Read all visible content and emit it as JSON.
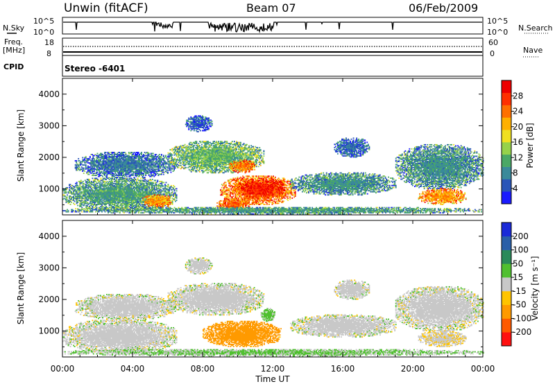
{
  "header": {
    "station": "Unwin (fitACF)",
    "beam": "Beam 07",
    "date": "06/Feb/2009"
  },
  "top_panels": {
    "nsky_label": "N.Sky",
    "nsky_ticks": [
      "10^5",
      "10^0"
    ],
    "nsearch_label": "N.Search",
    "nsearch_ticks": [
      "10^5",
      "10^0"
    ],
    "freq_label_1": "Freq.",
    "freq_label_2": "[MHz]",
    "freq_ticks": [
      "18",
      "8"
    ],
    "nave_label": "Nave",
    "nave_ticks": [
      "60",
      "0"
    ],
    "cpid_label": "CPID",
    "cpid_text": "Stereo -6401"
  },
  "colors": {
    "power": [
      "#1a1aff",
      "#2a55b8",
      "#3a8a9a",
      "#4aa866",
      "#96d24a",
      "#f0e020",
      "#ffb000",
      "#ff7000",
      "#ff3000",
      "#ee0000"
    ],
    "velocity": [
      "#ff1010",
      "#ff5a00",
      "#ff9a00",
      "#ffc400",
      "#c8c8c8",
      "#50c030",
      "#2a8a5a",
      "#2a5fa8",
      "#1a2ad8"
    ]
  },
  "chart_data": [
    {
      "type": "heatmap",
      "title": "",
      "xlabel": "Time UT",
      "ylabel": "Slant Range [km]",
      "xlim": [
        0,
        24
      ],
      "ylim": [
        180,
        4500
      ],
      "x_ticks": [
        "00:00",
        "04:00",
        "08:00",
        "12:00",
        "16:00",
        "20:00",
        "00:00"
      ],
      "y_ticks": [
        "1000",
        "2000",
        "3000",
        "4000"
      ],
      "colorbar_label": "Power [dB]",
      "colorbar_ticks": [
        "28",
        "24",
        "20",
        "16",
        "12",
        "8",
        "4"
      ],
      "colorbar_range": [
        0,
        32
      ],
      "grid": false,
      "regions": [
        {
          "t0": 0,
          "t1": 6.5,
          "r0": 300,
          "r1": 1350,
          "v": 10
        },
        {
          "t0": 4.5,
          "t1": 6.3,
          "r0": 400,
          "r1": 800,
          "v": 22
        },
        {
          "t0": 0.7,
          "t1": 6.5,
          "r0": 1350,
          "r1": 2150,
          "v": 7
        },
        {
          "t0": 6,
          "t1": 11.5,
          "r0": 1500,
          "r1": 2500,
          "v": 12
        },
        {
          "t0": 9.5,
          "t1": 11,
          "r0": 1500,
          "r1": 1900,
          "v": 24
        },
        {
          "t0": 9,
          "t1": 13.3,
          "r0": 500,
          "r1": 1400,
          "v": 24
        },
        {
          "t0": 10,
          "t1": 12.7,
          "r0": 700,
          "r1": 1300,
          "v": 29
        },
        {
          "t0": 8.8,
          "t1": 10.7,
          "r0": 280,
          "r1": 700,
          "v": 25
        },
        {
          "t0": 7,
          "t1": 8.5,
          "r0": 2800,
          "r1": 3300,
          "v": 5
        },
        {
          "t0": 13,
          "t1": 19,
          "r0": 800,
          "r1": 1500,
          "v": 9
        },
        {
          "t0": 15.5,
          "t1": 17.5,
          "r0": 2000,
          "r1": 2600,
          "v": 6
        },
        {
          "t0": 19,
          "t1": 24,
          "r0": 1000,
          "r1": 2400,
          "v": 9
        },
        {
          "t0": 20.3,
          "t1": 23,
          "r0": 500,
          "r1": 1000,
          "v": 22
        },
        {
          "t0": 0,
          "t1": 24,
          "r0": 200,
          "r1": 420,
          "v": 10
        }
      ]
    },
    {
      "type": "heatmap",
      "title": "",
      "xlabel": "Time UT",
      "ylabel": "Slant Range [km]",
      "xlim": [
        0,
        24
      ],
      "ylim": [
        180,
        4500
      ],
      "x_ticks": [
        "00:00",
        "04:00",
        "08:00",
        "12:00",
        "16:00",
        "20:00",
        "00:00"
      ],
      "y_ticks": [
        "1000",
        "2000",
        "3000",
        "4000"
      ],
      "colorbar_label": "Velocity [m s⁻¹]",
      "colorbar_ticks": [
        "200",
        "100",
        "50",
        "15",
        "-15",
        "-50",
        "-100",
        "-200"
      ],
      "colorbar_range": [
        -250,
        250
      ],
      "grid": false,
      "regions": [
        {
          "t0": 0,
          "t1": 6.5,
          "r0": 300,
          "r1": 1350,
          "v": 0
        },
        {
          "t0": 0.7,
          "t1": 6.5,
          "r0": 1350,
          "r1": 2150,
          "v": 0
        },
        {
          "t0": 6,
          "t1": 11.5,
          "r0": 1500,
          "r1": 2500,
          "v": 0
        },
        {
          "t0": 8,
          "t1": 12.5,
          "r0": 500,
          "r1": 1300,
          "v": -70
        },
        {
          "t0": 11.3,
          "t1": 12.1,
          "r0": 1300,
          "r1": 1700,
          "v": 30
        },
        {
          "t0": 7,
          "t1": 8.5,
          "r0": 2800,
          "r1": 3300,
          "v": 0
        },
        {
          "t0": 13,
          "t1": 19,
          "r0": 800,
          "r1": 1500,
          "v": 0
        },
        {
          "t0": 15.5,
          "t1": 17.5,
          "r0": 2000,
          "r1": 2600,
          "v": 0
        },
        {
          "t0": 19,
          "t1": 24,
          "r0": 1000,
          "r1": 2400,
          "v": 0
        },
        {
          "t0": 20.3,
          "t1": 23,
          "r0": 500,
          "r1": 1000,
          "v": -10
        },
        {
          "t0": 0,
          "t1": 24,
          "r0": 200,
          "r1": 420,
          "v": 20
        }
      ]
    }
  ]
}
